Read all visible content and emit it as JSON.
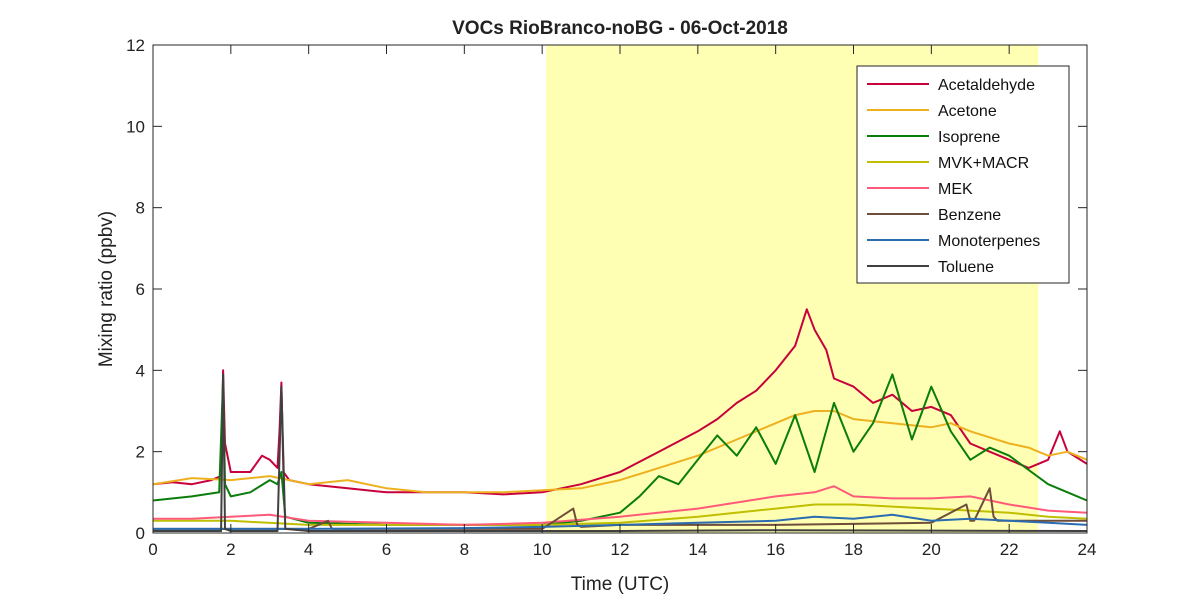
{
  "chart_data": {
    "type": "line",
    "title": "VOCs RioBranco-noBG - 06-Oct-2018",
    "xlabel": "Time (UTC)",
    "ylabel": "Mixing ratio (ppbv)",
    "xlim": [
      0,
      24
    ],
    "ylim": [
      0,
      12
    ],
    "xticks": [
      0,
      2,
      4,
      6,
      8,
      10,
      12,
      14,
      16,
      18,
      20,
      22,
      24
    ],
    "yticks": [
      0,
      2,
      4,
      6,
      8,
      10,
      12
    ],
    "xtick_labels": [
      "0",
      "2",
      "4",
      "6",
      "8",
      "10",
      "12",
      "14",
      "16",
      "18",
      "20",
      "22",
      "24"
    ],
    "ytick_labels": [
      "0",
      "2",
      "4",
      "6",
      "8",
      "10",
      "12"
    ],
    "grid": false,
    "legend_position": "top-right",
    "shaded_region": {
      "x_start": 10.1,
      "x_end": 22.75,
      "color": "#ffffb3"
    },
    "series": [
      {
        "name": "Acetaldehyde",
        "color": "#c8003c",
        "x": [
          0,
          0.5,
          1,
          1.5,
          1.75,
          1.8,
          1.85,
          2,
          2.5,
          2.8,
          3,
          3.2,
          3.25,
          3.3,
          3.35,
          3.5,
          4,
          5,
          6,
          7,
          8,
          9,
          10,
          11,
          12,
          13,
          14,
          14.5,
          15,
          15.5,
          16,
          16.5,
          16.8,
          17,
          17.3,
          17.5,
          18,
          18.5,
          19,
          19.5,
          20,
          20.5,
          21,
          21.5,
          22,
          22.5,
          23,
          23.3,
          23.5,
          24
        ],
        "y": [
          1.2,
          1.25,
          1.2,
          1.3,
          1.4,
          4.0,
          2.2,
          1.5,
          1.5,
          1.9,
          1.8,
          1.6,
          2.5,
          3.7,
          1.5,
          1.3,
          1.2,
          1.1,
          1.0,
          1.0,
          1.0,
          0.95,
          1.0,
          1.2,
          1.5,
          2.0,
          2.5,
          2.8,
          3.2,
          3.5,
          4.0,
          4.6,
          5.5,
          5.0,
          4.5,
          3.8,
          3.6,
          3.2,
          3.4,
          3.0,
          3.1,
          2.9,
          2.2,
          2.0,
          1.8,
          1.6,
          1.8,
          2.5,
          2.0,
          1.7
        ]
      },
      {
        "name": "Acetone",
        "color": "#edb120",
        "x": [
          0,
          1,
          2,
          3,
          4,
          5,
          6,
          7,
          8,
          9,
          10,
          11,
          12,
          13,
          14,
          15,
          16,
          16.5,
          17,
          17.5,
          18,
          19,
          20,
          20.5,
          21,
          22,
          22.5,
          23,
          23.5,
          24
        ],
        "y": [
          1.2,
          1.35,
          1.3,
          1.4,
          1.2,
          1.3,
          1.1,
          1.0,
          1.0,
          1.0,
          1.05,
          1.1,
          1.3,
          1.6,
          1.9,
          2.3,
          2.7,
          2.9,
          3.0,
          3.0,
          2.8,
          2.7,
          2.6,
          2.7,
          2.5,
          2.2,
          2.1,
          1.9,
          2.0,
          1.8
        ]
      },
      {
        "name": "Isoprene",
        "color": "#0a7d0a",
        "x": [
          0,
          1,
          1.7,
          1.8,
          1.85,
          2,
          2.5,
          3,
          3.2,
          3.3,
          3.4,
          4,
          6,
          8,
          10,
          11,
          12,
          12.5,
          13,
          13.5,
          14,
          14.5,
          15,
          15.5,
          16,
          16.5,
          17,
          17.5,
          18,
          18.5,
          19,
          19.5,
          20,
          20.5,
          21,
          21.5,
          22,
          23,
          23.5,
          24
        ],
        "y": [
          0.8,
          0.9,
          1.0,
          3.8,
          1.2,
          0.9,
          1.0,
          1.3,
          1.2,
          1.5,
          0.4,
          0.25,
          0.2,
          0.2,
          0.2,
          0.3,
          0.5,
          0.9,
          1.4,
          1.2,
          1.8,
          2.4,
          1.9,
          2.6,
          1.7,
          2.9,
          1.5,
          3.2,
          2.0,
          2.7,
          3.9,
          2.3,
          3.6,
          2.5,
          1.8,
          2.1,
          1.9,
          1.2,
          1.0,
          0.8
        ]
      },
      {
        "name": "MVK+MACR",
        "color": "#bfbf00",
        "x": [
          0,
          2,
          4,
          6,
          8,
          10,
          12,
          14,
          16,
          17,
          18,
          19,
          20,
          21,
          22,
          23,
          24
        ],
        "y": [
          0.3,
          0.3,
          0.2,
          0.2,
          0.2,
          0.2,
          0.25,
          0.4,
          0.6,
          0.7,
          0.7,
          0.65,
          0.6,
          0.55,
          0.5,
          0.4,
          0.35
        ]
      },
      {
        "name": "MEK",
        "color": "#ff5a7a",
        "x": [
          0,
          1,
          2,
          3,
          4,
          6,
          8,
          10,
          12,
          14,
          15,
          16,
          17,
          17.5,
          18,
          19,
          20,
          21,
          22,
          23,
          24
        ],
        "y": [
          0.35,
          0.35,
          0.4,
          0.45,
          0.3,
          0.25,
          0.2,
          0.25,
          0.4,
          0.6,
          0.75,
          0.9,
          1.0,
          1.15,
          0.9,
          0.85,
          0.85,
          0.9,
          0.7,
          0.55,
          0.5
        ]
      },
      {
        "name": "Benzene",
        "color": "#6e4d3a",
        "x": [
          0,
          4,
          4.5,
          4.6,
          5,
          8,
          10,
          10.8,
          10.9,
          11,
          12,
          16,
          20,
          20.9,
          21,
          21.1,
          21.5,
          21.6,
          21.7,
          22,
          24
        ],
        "y": [
          0.1,
          0.1,
          0.3,
          0.1,
          0.1,
          0.1,
          0.1,
          0.6,
          0.2,
          0.15,
          0.2,
          0.2,
          0.25,
          0.7,
          0.3,
          0.3,
          1.1,
          0.4,
          0.3,
          0.3,
          0.3
        ]
      },
      {
        "name": "Monoterpenes",
        "color": "#2b6cb0",
        "x": [
          0,
          4,
          8,
          10,
          12,
          14,
          16,
          17,
          18,
          19,
          20,
          21,
          22,
          23,
          24
        ],
        "y": [
          0.1,
          0.1,
          0.12,
          0.15,
          0.2,
          0.25,
          0.3,
          0.4,
          0.35,
          0.45,
          0.3,
          0.35,
          0.3,
          0.25,
          0.2
        ]
      },
      {
        "name": "Toluene",
        "color": "#404040",
        "x": [
          0,
          1.75,
          1.8,
          1.85,
          2,
          3.2,
          3.3,
          3.4,
          4,
          8,
          12,
          16,
          20,
          24
        ],
        "y": [
          0.05,
          0.05,
          3.9,
          0.1,
          0.05,
          0.05,
          3.6,
          0.1,
          0.05,
          0.05,
          0.05,
          0.07,
          0.06,
          0.05
        ]
      }
    ]
  }
}
